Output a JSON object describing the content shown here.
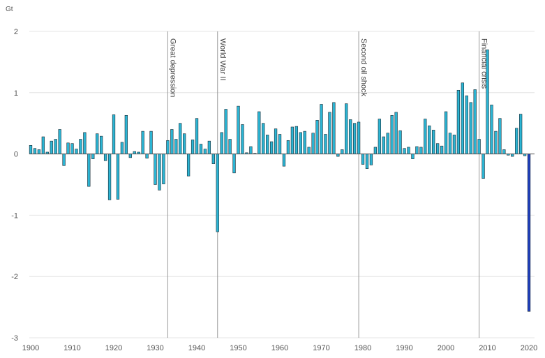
{
  "chart_data": {
    "type": "bar",
    "unit_label": "Gt",
    "ylim": [
      -3,
      2
    ],
    "y_ticks": [
      2,
      1,
      0,
      -1,
      -2,
      -3
    ],
    "y_tick_labels": [
      "2",
      "1",
      "0",
      "-1",
      "-2",
      "-3"
    ],
    "xlim": [
      1900,
      2021
    ],
    "x_ticks": [
      1900,
      1910,
      1920,
      1930,
      1940,
      1950,
      1960,
      1970,
      1980,
      1990,
      2000,
      2010,
      2020
    ],
    "x_tick_labels": [
      "1900",
      "1910",
      "1920",
      "1930",
      "1940",
      "1950",
      "1960",
      "1970",
      "1980",
      "1990",
      "2000",
      "2010",
      "2020"
    ],
    "grid": true,
    "colors": {
      "bar": "#2cb5d4",
      "bar_outline": "#1a2a33",
      "highlight": "#1f3fbf",
      "grid": "#e4e4e4",
      "event_line": "#999999"
    },
    "highlight_year": 2020,
    "annotations": [
      {
        "year": 1933,
        "text": "Great depression"
      },
      {
        "year": 1945,
        "text": "World War II"
      },
      {
        "year": 1979,
        "text": "Second oil shock"
      },
      {
        "year": 2008,
        "text": "Financial crisis"
      }
    ],
    "years": [
      1900,
      1901,
      1902,
      1903,
      1904,
      1905,
      1906,
      1907,
      1908,
      1909,
      1910,
      1911,
      1912,
      1913,
      1914,
      1915,
      1916,
      1917,
      1918,
      1919,
      1920,
      1921,
      1922,
      1923,
      1924,
      1925,
      1926,
      1927,
      1928,
      1929,
      1930,
      1931,
      1932,
      1933,
      1934,
      1935,
      1936,
      1937,
      1938,
      1939,
      1940,
      1941,
      1942,
      1943,
      1944,
      1945,
      1946,
      1947,
      1948,
      1949,
      1950,
      1951,
      1952,
      1953,
      1954,
      1955,
      1956,
      1957,
      1958,
      1959,
      1960,
      1961,
      1962,
      1963,
      1964,
      1965,
      1966,
      1967,
      1968,
      1969,
      1970,
      1971,
      1972,
      1973,
      1974,
      1975,
      1976,
      1977,
      1978,
      1979,
      1980,
      1981,
      1982,
      1983,
      1984,
      1985,
      1986,
      1987,
      1988,
      1989,
      1990,
      1991,
      1992,
      1993,
      1994,
      1995,
      1996,
      1997,
      1998,
      1999,
      2000,
      2001,
      2002,
      2003,
      2004,
      2005,
      2006,
      2007,
      2008,
      2009,
      2010,
      2011,
      2012,
      2013,
      2014,
      2015,
      2016,
      2017,
      2018,
      2019,
      2020
    ],
    "values": [
      0.14,
      0.09,
      0.07,
      0.28,
      0.03,
      0.21,
      0.24,
      0.4,
      -0.19,
      0.18,
      0.17,
      0.08,
      0.24,
      0.35,
      -0.53,
      -0.08,
      0.33,
      0.29,
      -0.11,
      -0.75,
      0.64,
      -0.74,
      0.19,
      0.63,
      -0.06,
      0.04,
      0.03,
      0.37,
      -0.07,
      0.37,
      -0.5,
      -0.59,
      -0.49,
      0.22,
      0.4,
      0.24,
      0.5,
      0.33,
      -0.36,
      0.23,
      0.58,
      0.16,
      0.08,
      0.21,
      -0.16,
      -1.27,
      0.35,
      0.73,
      0.24,
      -0.31,
      0.78,
      0.48,
      0.02,
      0.12,
      0.01,
      0.69,
      0.5,
      0.31,
      0.2,
      0.41,
      0.32,
      -0.2,
      0.22,
      0.44,
      0.45,
      0.35,
      0.37,
      0.11,
      0.34,
      0.55,
      0.81,
      0.32,
      0.68,
      0.84,
      -0.04,
      0.07,
      0.82,
      0.56,
      0.5,
      0.52,
      -0.17,
      -0.24,
      -0.18,
      0.11,
      0.57,
      0.28,
      0.34,
      0.63,
      0.68,
      0.38,
      0.09,
      0.11,
      -0.08,
      0.12,
      0.11,
      0.57,
      0.46,
      0.39,
      0.17,
      0.13,
      0.69,
      0.34,
      0.31,
      1.04,
      1.16,
      0.95,
      0.84,
      1.05,
      0.24,
      -0.4,
      1.7,
      0.8,
      0.37,
      0.58,
      0.07,
      -0.02,
      -0.04,
      0.42,
      0.65,
      -0.03,
      -2.57
    ]
  }
}
